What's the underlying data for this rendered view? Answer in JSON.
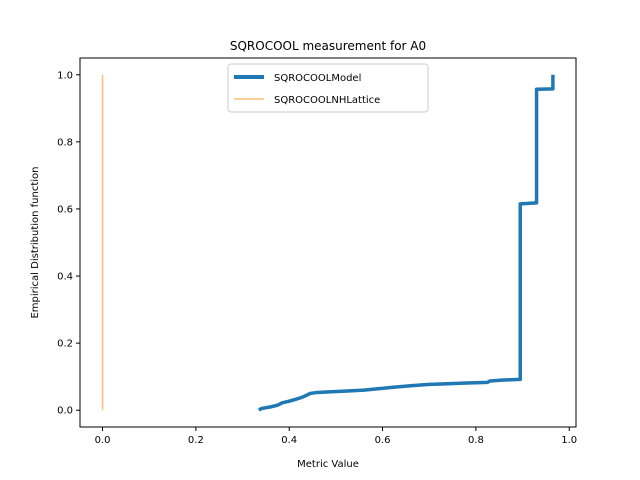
{
  "chart_data": {
    "type": "line",
    "title": "SQROCOOL measurement for A0",
    "xlabel": "Metric Value",
    "ylabel": "Empirical Distribution function",
    "xlim": [
      -0.0483,
      1.0145
    ],
    "ylim": [
      -0.05,
      1.05
    ],
    "xticks": [
      0.0,
      0.2,
      0.4,
      0.6,
      0.8,
      1.0
    ],
    "xtick_labels": [
      "0.0",
      "0.2",
      "0.4",
      "0.6",
      "0.8",
      "1.0"
    ],
    "yticks": [
      0.0,
      0.2,
      0.4,
      0.6,
      0.8,
      1.0
    ],
    "ytick_labels": [
      "0.0",
      "0.2",
      "0.4",
      "0.6",
      "0.8",
      "1.0"
    ],
    "grid": false,
    "legend_position": "upper center",
    "series": [
      {
        "name": "SQROCOOLModel",
        "color": "#1f77b4",
        "points": [
          [
            0.335,
            0.0
          ],
          [
            0.34,
            0.005
          ],
          [
            0.36,
            0.01
          ],
          [
            0.375,
            0.015
          ],
          [
            0.385,
            0.022
          ],
          [
            0.4,
            0.027
          ],
          [
            0.42,
            0.035
          ],
          [
            0.43,
            0.04
          ],
          [
            0.445,
            0.05
          ],
          [
            0.46,
            0.053
          ],
          [
            0.49,
            0.055
          ],
          [
            0.52,
            0.057
          ],
          [
            0.56,
            0.06
          ],
          [
            0.59,
            0.064
          ],
          [
            0.62,
            0.068
          ],
          [
            0.66,
            0.073
          ],
          [
            0.7,
            0.077
          ],
          [
            0.74,
            0.079
          ],
          [
            0.78,
            0.081
          ],
          [
            0.825,
            0.083
          ],
          [
            0.83,
            0.087
          ],
          [
            0.86,
            0.09
          ],
          [
            0.895,
            0.092
          ],
          [
            0.895,
            0.615
          ],
          [
            0.93,
            0.618
          ],
          [
            0.93,
            0.957
          ],
          [
            0.965,
            0.958
          ],
          [
            0.965,
            1.0
          ]
        ]
      },
      {
        "name": "SQROCOOLNHLattice",
        "color": "#ffbb78",
        "points": [
          [
            0.0,
            0.0
          ],
          [
            0.0,
            1.0
          ]
        ]
      }
    ]
  }
}
